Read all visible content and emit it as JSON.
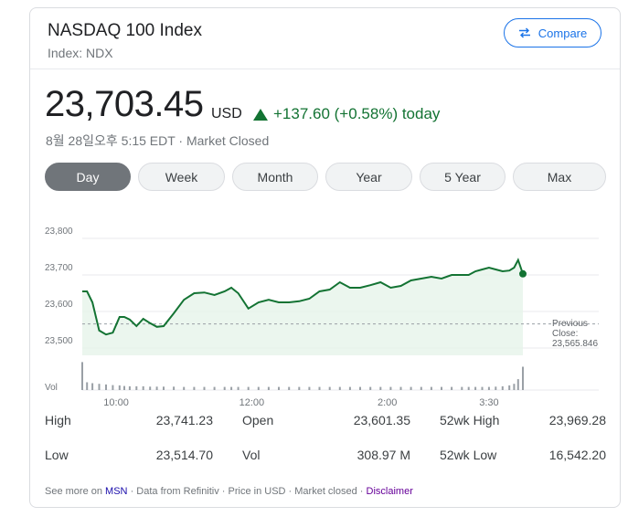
{
  "header": {
    "title": "NASDAQ 100 Index",
    "subtitle": "Index: NDX",
    "compare_label": "Compare"
  },
  "quote": {
    "price": "23,703.45",
    "currency": "USD",
    "change": "+137.60 (+0.58%) today",
    "timestamp": "8월 28일오후 5:15 EDT · Market Closed"
  },
  "ranges": [
    {
      "label": "Day",
      "active": true
    },
    {
      "label": "Week",
      "active": false
    },
    {
      "label": "Month",
      "active": false
    },
    {
      "label": "Year",
      "active": false
    },
    {
      "label": "5 Year",
      "active": false
    },
    {
      "label": "Max",
      "active": false
    }
  ],
  "chart_data": {
    "type": "area",
    "y_ticks": [
      "23,800",
      "23,700",
      "23,600",
      "23,500"
    ],
    "ylim": [
      23500,
      23800
    ],
    "x_ticks": [
      "10:00",
      "12:00",
      "2:00",
      "3:30"
    ],
    "volume_label": "Vol",
    "previous_close_label": "Previous Close:",
    "previous_close": 23565.846,
    "previous_close_text": "23,565.846",
    "x_hours": [
      9.5,
      9.57,
      9.65,
      9.75,
      9.85,
      9.95,
      10.05,
      10.12,
      10.2,
      10.3,
      10.4,
      10.5,
      10.6,
      10.7,
      10.85,
      11.0,
      11.15,
      11.3,
      11.45,
      11.6,
      11.7,
      11.8,
      11.95,
      12.1,
      12.25,
      12.4,
      12.55,
      12.7,
      12.85,
      13.0,
      13.15,
      13.3,
      13.45,
      13.6,
      13.75,
      13.9,
      14.05,
      14.2,
      14.35,
      14.5,
      14.65,
      14.8,
      14.95,
      15.1,
      15.2,
      15.3,
      15.4,
      15.5,
      15.6,
      15.7,
      15.8,
      15.87,
      15.93,
      16.0
    ],
    "values": [
      23655,
      23655,
      23625,
      23548,
      23537,
      23542,
      23585,
      23585,
      23578,
      23560,
      23580,
      23568,
      23558,
      23560,
      23595,
      23632,
      23650,
      23652,
      23645,
      23655,
      23665,
      23650,
      23608,
      23625,
      23632,
      23625,
      23625,
      23628,
      23635,
      23655,
      23660,
      23680,
      23665,
      23665,
      23672,
      23680,
      23665,
      23670,
      23685,
      23690,
      23695,
      23690,
      23700,
      23700,
      23700,
      23710,
      23715,
      23720,
      23715,
      23710,
      23712,
      23720,
      23741,
      23703
    ],
    "volume": [
      0.9,
      0.25,
      0.22,
      0.2,
      0.18,
      0.16,
      0.15,
      0.13,
      0.12,
      0.12,
      0.12,
      0.11,
      0.11,
      0.11,
      0.11,
      0.1,
      0.1,
      0.1,
      0.1,
      0.1,
      0.1,
      0.1,
      0.1,
      0.1,
      0.1,
      0.1,
      0.1,
      0.1,
      0.1,
      0.1,
      0.1,
      0.1,
      0.1,
      0.1,
      0.1,
      0.1,
      0.1,
      0.1,
      0.1,
      0.1,
      0.1,
      0.1,
      0.1,
      0.1,
      0.1,
      0.1,
      0.1,
      0.1,
      0.11,
      0.12,
      0.15,
      0.2,
      0.35,
      0.75
    ],
    "line_color": "#137333",
    "fill_color": "#e6f4ea",
    "grid": true
  },
  "stats": {
    "high_label": "High",
    "high": "23,741.23",
    "open_label": "Open",
    "open": "23,601.35",
    "wk52_high_label": "52wk High",
    "wk52_high": "23,969.28",
    "low_label": "Low",
    "low": "23,514.70",
    "vol_label": "Vol",
    "vol": "308.97 M",
    "wk52_low_label": "52wk Low",
    "wk52_low": "16,542.20"
  },
  "footer": {
    "see_more": "See more on",
    "msn": "MSN",
    "rest": "· Data from Refinitiv · Price in USD · Market closed ·",
    "disclaimer": "Disclaimer"
  },
  "colors": {
    "accent": "#1a73e8",
    "positive": "#137333"
  }
}
